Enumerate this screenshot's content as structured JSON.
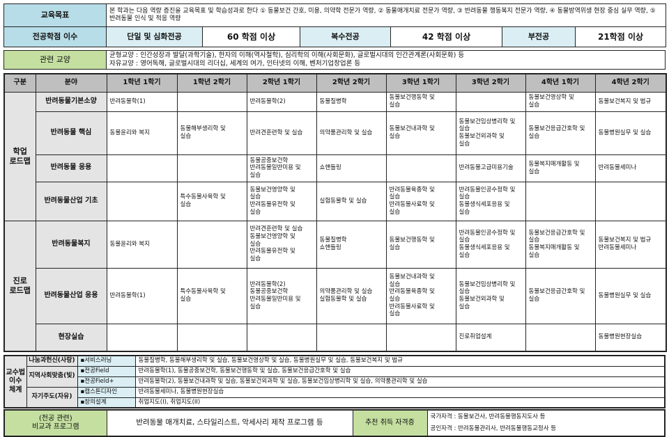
{
  "goal": {
    "label": "교육목표",
    "text": "본 학과는 다음 역량 증진을 교육목표 및 학습성과로 한다 ① 동물보건 간호, 미용, 의약학 전문가 역량, ② 동물매개치료 전문가 역량, ③ 반려동물 행동복지 전문가 역량, ④ 동물방역위생 현장 중심 실무 역량, ⑤ 반려동물 인식 및 적응 역량"
  },
  "credits": {
    "label": "전공학점 이수",
    "items": [
      {
        "type": "단일 및 심화전공",
        "value": "60 학점 이상"
      },
      {
        "type": "복수전공",
        "value": "42 학점 이상"
      },
      {
        "type": "부전공",
        "value": "21학점 이상"
      }
    ]
  },
  "liberal": {
    "label": "관련 교양",
    "lines": [
      "균형교양 : 인간성장과 발달(과학기술), 한자의 이해(역사철학), 심리학의 이해(사회문화), 글로벌시대의 인간관계론(사회문화) 등",
      "자유교양 : 영어독해, 글로벌시대의 리더십, 세계의 여가, 인터넷의 이해, 벤처기업창업론 등"
    ]
  },
  "roadmap": {
    "headers": [
      "구분",
      "분야",
      "1학년 1학기",
      "1학년 2학기",
      "2학년 1학기",
      "2학년 2학기",
      "3학년 1학기",
      "3학년 2학기",
      "4학년 1학기",
      "4학년 2학기"
    ],
    "groups": [
      {
        "label": "학업\n로드맵",
        "rows": [
          {
            "field": "반려동물기본소양",
            "cells": [
              "반려동물학(1)",
              "",
              "반려동물학(2)",
              "동물질병학",
              "동물보건행동학 및\n실습",
              "",
              "동물보건영상학 및\n실습",
              "동물보건복지 및 법규"
            ]
          },
          {
            "field": "반려동물 핵심",
            "cells": [
              "동물윤리와 복지",
              "동물해부생리학 및\n실습",
              "반려견훈련학 및 실습",
              "의약품관리학 및 실습",
              "동물보건내과학 및\n실습",
              "동물보건임상병리학 및\n실습\n동물보건외과학 및\n실습",
              "동물보건응급간호학 및\n실습",
              "동물병원실무 및 실습"
            ]
          },
          {
            "field": "반려동물 응용",
            "cells": [
              "",
              "",
              "동물공중보건학\n반려동물일반미용 및\n실습",
              "쇼핸들링",
              "",
              "반려동물고급미용기술",
              "동물복지매개활동 및\n실습",
              "반려동물세미나"
            ]
          },
          {
            "field": "반려동물산업 기초",
            "cells": [
              "",
              "특수동물사육학 및\n실습",
              "동물보건영양학 및\n실습\n반려동물유전학 및\n실습",
              "실험동물학 및 실습",
              "반려동물육종학 및\n실습\n반려동물사료학 및\n실습",
              "반려동물인공수정학 및\n실습\n동물생식세포응용 및\n실습",
              "",
              ""
            ]
          }
        ]
      },
      {
        "label": "진로\n로드맵",
        "rows": [
          {
            "field": "반려동물복지",
            "cells": [
              "동물윤리와 복지",
              "",
              "반려견훈련학 및 실습\n동물보건영양학 및\n실습\n반려동물유전학 및\n실습",
              "동물질병학\n쇼핸들링",
              "동물보건행동학 및\n실습",
              "반려동물인공수정학 및\n실습\n동물생식세포응용 및\n실습",
              "동물보건응급간호학 및\n실습\n동물복지매개활동 및\n실습",
              "동물보건복지 및 법규\n반려동물세미나"
            ]
          },
          {
            "field": "반려동물산업 응용",
            "cells": [
              "반려동물학(1)",
              "특수동물사육학 및\n실습",
              "반려동물학(2)\n동물공중보건학\n반려동물일반미용 및\n실습",
              "의약품관리학 및 실습\n실험동물학 및 실습",
              "동물보건내과학 및\n실습\n반려동물육종학 및\n실습\n반려동물사료학 및\n실습",
              "동물보건임상병리학 및\n실습\n동물보건외과학 및\n실습",
              "동물보건응급간호학 및\n실습",
              "동물병원실무 및 실습"
            ]
          },
          {
            "field": "현장실습",
            "cells": [
              "",
              "",
              "",
              "",
              "",
              "진로취업설계",
              "",
              "동물병원현장실습"
            ]
          }
        ]
      }
    ]
  },
  "teaching": {
    "label": "교수법\n이수\n체계",
    "rows": [
      {
        "type": "나눔과헌신(사랑)",
        "span": 1,
        "method": "▪서비스러닝",
        "content": "동물질병학, 동물해부생리학 및 실습, 동물보건영상학 및 실습, 동물병원실무 및 실습, 동물보건복지 및 법규"
      },
      {
        "type": "지역사회맞춤(빛)",
        "span": 2,
        "method": "▪전공Field",
        "content": "반려동물학(1), 동물공중보건학, 동물보건행동학 및 실습, 동물보건응급간호학 및 실습"
      },
      {
        "method": "▪전공Field+",
        "content": "반려동물학(2), 동물보건내과학 및 실습, 동물보건외과학 및 실습, 동물보건임상병리학 및 실습, 의약품관리학 및 실습"
      },
      {
        "type": "자기주도(자유)",
        "span": 2,
        "method": "▪캡스톤디자인",
        "content": "반려동물세미나, 동물병원현장실습"
      },
      {
        "method": "▪창의설계",
        "content": "취업지도(I), 취업지도(II)"
      }
    ]
  },
  "bottom": {
    "program_label_1": "(전공 관련)",
    "program_label_2": "비교과 프로그램",
    "program": "반려동물 매개치료, 스타일리스트, 악세사리 제작 프로그램 등",
    "cert_label": "추천 취득 자격증",
    "certs": [
      "국가자격 : 동물보건사, 반려동물행동지도사 등",
      "공인자격 : 반려동물관리사, 반려동물행동교정사 등"
    ]
  }
}
